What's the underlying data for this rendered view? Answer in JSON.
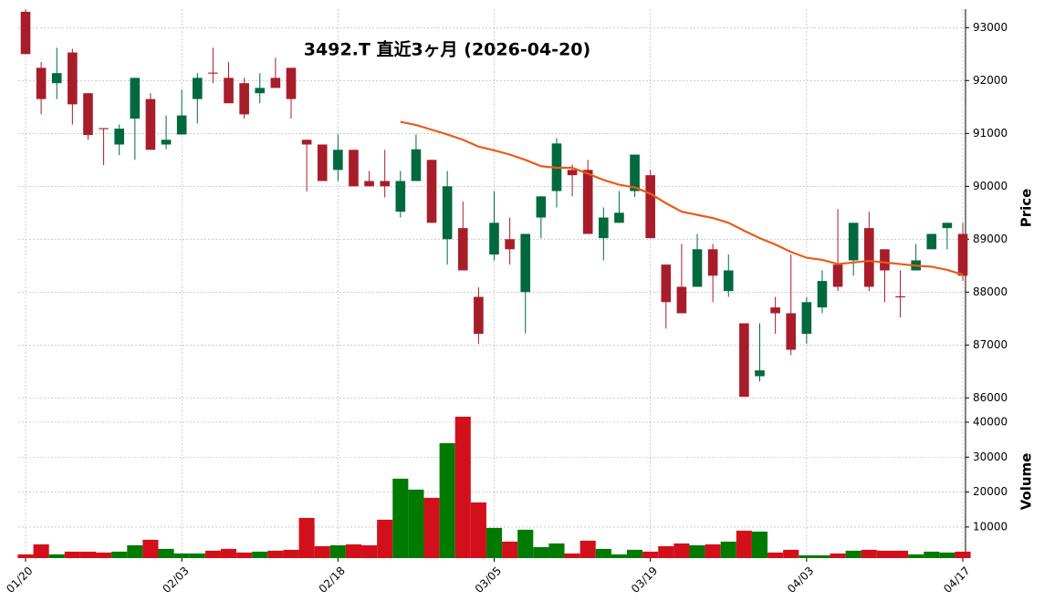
{
  "chart_data": {
    "type": "candlestick",
    "title": "3492.T  直近3ヶ月  (2026-04-20)",
    "categories": [
      "01/20",
      null,
      null,
      null,
      null,
      null,
      null,
      null,
      null,
      null,
      "02/03",
      null,
      null,
      null,
      null,
      null,
      null,
      null,
      null,
      null,
      "02/18",
      null,
      null,
      null,
      null,
      null,
      null,
      null,
      null,
      null,
      "03/05",
      null,
      null,
      null,
      null,
      null,
      null,
      null,
      null,
      null,
      "03/19",
      null,
      null,
      null,
      null,
      null,
      null,
      null,
      null,
      null,
      "04/03",
      null,
      null,
      null,
      null,
      null,
      null,
      null,
      null,
      null,
      "04/17"
    ],
    "open": [
      93300,
      92240,
      91950,
      92530,
      91760,
      91100,
      90790,
      91280,
      91650,
      90790,
      90980,
      91650,
      92150,
      92050,
      91950,
      91760,
      92050,
      92240,
      90880,
      90790,
      90310,
      90690,
      90100,
      90100,
      89520,
      90100,
      90500,
      89000,
      89210,
      87910,
      88710,
      89000,
      88000,
      89410,
      89910,
      90310,
      90310,
      89020,
      89310,
      89910,
      90210,
      88520,
      88100,
      88100,
      88810,
      88020,
      87410,
      86410,
      87710,
      87600,
      87210,
      87710,
      88520,
      88600,
      89210,
      88810,
      87920,
      88410,
      88810,
      89210,
      89100
    ],
    "high": [
      93350,
      92350,
      92620,
      92600,
      91760,
      91100,
      91170,
      92050,
      91760,
      91340,
      91830,
      92140,
      92620,
      92350,
      92050,
      92140,
      92430,
      92240,
      90880,
      90790,
      90980,
      90690,
      90290,
      90690,
      90290,
      90980,
      90500,
      90290,
      89710,
      88090,
      89910,
      89410,
      89100,
      89810,
      90910,
      90410,
      90500,
      89600,
      89910,
      90600,
      90310,
      88520,
      88910,
      89100,
      88910,
      88710,
      87410,
      87410,
      87910,
      88710,
      87910,
      88410,
      89570,
      89310,
      89520,
      88810,
      88410,
      88910,
      89100,
      89310,
      89310
    ],
    "low": [
      92500,
      91360,
      91650,
      91170,
      90880,
      90400,
      90590,
      90500,
      90690,
      90700,
      90980,
      91190,
      91950,
      91570,
      91280,
      91570,
      91860,
      91280,
      89900,
      90100,
      90100,
      90000,
      90000,
      89790,
      89410,
      90100,
      89310,
      88520,
      88410,
      87020,
      88600,
      88520,
      87220,
      89020,
      89600,
      89810,
      89100,
      88600,
      89310,
      89800,
      89020,
      87310,
      87600,
      88100,
      87810,
      87910,
      86020,
      86310,
      87210,
      86810,
      87020,
      87600,
      88020,
      88310,
      88020,
      87810,
      87520,
      88410,
      88810,
      88810,
      88210
    ],
    "close": [
      92500,
      91650,
      92140,
      91550,
      90970,
      91080,
      91090,
      92050,
      90690,
      90880,
      91340,
      92050,
      92130,
      91570,
      91360,
      91860,
      91860,
      91650,
      90790,
      90100,
      90690,
      90000,
      90000,
      90000,
      90100,
      90700,
      89310,
      90000,
      88410,
      87210,
      89310,
      88810,
      89100,
      89810,
      90810,
      90210,
      89100,
      89410,
      89500,
      90600,
      89020,
      87810,
      87600,
      88810,
      88310,
      88410,
      86020,
      86520,
      87600,
      86910,
      87810,
      88210,
      88100,
      89310,
      88100,
      88410,
      87900,
      88600,
      89100,
      89310,
      88310
    ],
    "up_color": "#00693e",
    "down_color": "#a71d2a",
    "ylim": [
      85850,
      93350
    ],
    "yticks": [
      86000,
      87000,
      88000,
      89000,
      90000,
      91000,
      92000,
      93000
    ],
    "ylabel": "Price",
    "grid": true,
    "ma": {
      "color": "#ea5b1a",
      "values": [
        null,
        null,
        null,
        null,
        null,
        null,
        null,
        null,
        null,
        null,
        null,
        null,
        null,
        null,
        null,
        null,
        null,
        null,
        null,
        null,
        null,
        null,
        null,
        null,
        91220,
        91160,
        91070,
        90980,
        90880,
        90750,
        90680,
        90600,
        90500,
        90380,
        90350,
        90350,
        90240,
        90120,
        90030,
        89980,
        89860,
        89680,
        89520,
        89460,
        89400,
        89310,
        89160,
        89020,
        88900,
        88760,
        88650,
        88610,
        88530,
        88560,
        88590,
        88560,
        88530,
        88500,
        88480,
        88420,
        88330
      ]
    },
    "volume": {
      "ylabel": "Volume",
      "up_color": "#007a00",
      "down_color": "#d2101c",
      "ylim": [
        1100,
        43900
      ],
      "yticks": [
        10000,
        20000,
        30000,
        40000
      ],
      "values": [
        2170,
        5040,
        2170,
        2950,
        2950,
        2700,
        2950,
        4780,
        6350,
        3740,
        2430,
        2430,
        3220,
        3740,
        2700,
        2950,
        3220,
        3480,
        12610,
        4520,
        4780,
        5040,
        4780,
        12090,
        23830,
        20700,
        18350,
        34000,
        41570,
        17040,
        9740,
        5820,
        9220,
        4260,
        5300,
        2430,
        6090,
        3740,
        2170,
        3480,
        2950,
        4520,
        5300,
        4780,
        5040,
        5820,
        8950,
        8690,
        2700,
        3480,
        1910,
        1910,
        2430,
        3220,
        3480,
        3220,
        3220,
        2170,
        2950,
        2700,
        2950
      ]
    }
  }
}
